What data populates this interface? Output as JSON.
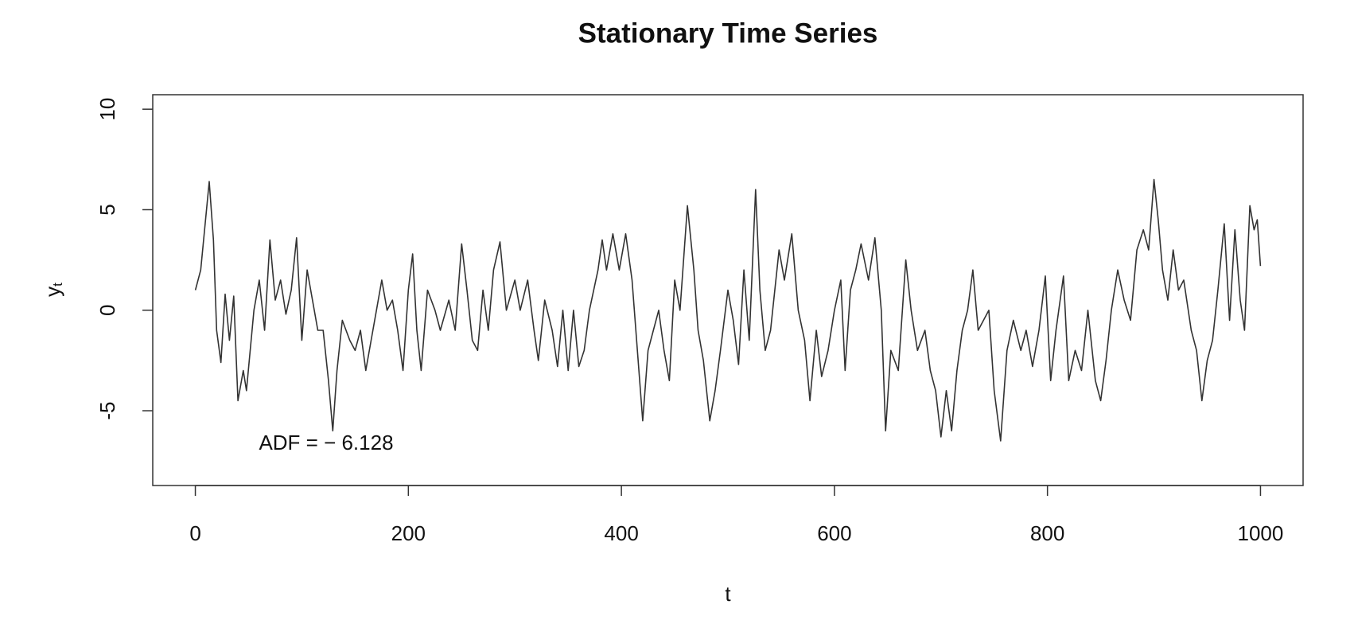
{
  "chart_data": {
    "type": "line",
    "title": "Stationary Time Series",
    "xlabel": "t",
    "ylabel": "y",
    "ylabel_subscript": "t",
    "annotation": "ADF = − 6.128",
    "color": "#333333",
    "xlim": [
      -40,
      1040
    ],
    "ylim": [
      -8.72,
      10.72
    ],
    "xticks": [
      0,
      200,
      400,
      600,
      800,
      1000
    ],
    "yticks": [
      -5,
      0,
      5,
      10
    ],
    "x": [
      0,
      5,
      13,
      17,
      20,
      24,
      28,
      32,
      36,
      40,
      45,
      48,
      55,
      60,
      65,
      70,
      75,
      80,
      85,
      90,
      95,
      100,
      105,
      110,
      115,
      120,
      125,
      129,
      133,
      138,
      145,
      150,
      155,
      160,
      165,
      170,
      175,
      180,
      185,
      190,
      195,
      200,
      204,
      208,
      212,
      218,
      225,
      230,
      238,
      244,
      250,
      255,
      260,
      265,
      270,
      275,
      280,
      286,
      292,
      300,
      305,
      312,
      318,
      322,
      328,
      335,
      340,
      345,
      350,
      355,
      360,
      365,
      370,
      378,
      382,
      386,
      392,
      398,
      404,
      410,
      415,
      420,
      425,
      430,
      435,
      440,
      445,
      450,
      455,
      462,
      468,
      472,
      477,
      483,
      488,
      493,
      500,
      505,
      510,
      515,
      520,
      526,
      530,
      535,
      540,
      548,
      553,
      560,
      566,
      572,
      577,
      583,
      588,
      594,
      600,
      606,
      610,
      615,
      620,
      625,
      632,
      638,
      644,
      648,
      653,
      660,
      667,
      672,
      678,
      685,
      690,
      695,
      700,
      705,
      710,
      715,
      720,
      725,
      730,
      735,
      740,
      745,
      750,
      756,
      762,
      768,
      775,
      780,
      786,
      792,
      798,
      803,
      808,
      815,
      820,
      826,
      832,
      838,
      845,
      850,
      855,
      860,
      866,
      872,
      878,
      884,
      890,
      895,
      900,
      904,
      908,
      913,
      918,
      923,
      928,
      935,
      940,
      945,
      950,
      955,
      960,
      966,
      971,
      976,
      981,
      985,
      990,
      994,
      997,
      1000
    ],
    "values": [
      1,
      2,
      6.4,
      3.5,
      -1,
      -2.6,
      0.8,
      -1.5,
      0.7,
      -4.5,
      -3,
      -4,
      0,
      1.5,
      -1,
      3.5,
      0.5,
      1.5,
      -0.2,
      1,
      3.6,
      -1.5,
      2,
      0.5,
      -1,
      -1,
      -3.5,
      -6,
      -3,
      -0.5,
      -1.5,
      -2,
      -1,
      -3,
      -1.5,
      0,
      1.5,
      0,
      0.5,
      -1,
      -3,
      1,
      2.8,
      -1,
      -3,
      1,
      0,
      -1,
      0.5,
      -1,
      3.3,
      1,
      -1.5,
      -2,
      1,
      -1,
      2,
      3.4,
      0,
      1.5,
      0,
      1.5,
      -1,
      -2.5,
      0.5,
      -1,
      -2.8,
      0,
      -3,
      0,
      -2.8,
      -2,
      0,
      2,
      3.5,
      2,
      3.8,
      2,
      3.8,
      1.5,
      -2,
      -5.5,
      -2,
      -1,
      0,
      -2,
      -3.5,
      1.5,
      0,
      5.2,
      2,
      -1,
      -2.5,
      -5.5,
      -4,
      -2,
      1,
      -0.5,
      -2.7,
      2,
      -1.5,
      6,
      1,
      -2,
      -1,
      3,
      1.5,
      3.8,
      0,
      -1.5,
      -4.5,
      -1,
      -3.3,
      -2,
      0,
      1.5,
      -3,
      1,
      2,
      3.3,
      1.5,
      3.6,
      0,
      -6,
      -2,
      -3,
      2.5,
      0,
      -2,
      -1,
      -3,
      -4,
      -6.3,
      -4,
      -6,
      -3,
      -1,
      0,
      2,
      -1,
      -0.5,
      0,
      -4,
      -6.5,
      -2,
      -0.5,
      -2,
      -1,
      -2.8,
      -1,
      1.7,
      -3.5,
      -1,
      1.7,
      -3.5,
      -2,
      -3,
      0,
      -3.5,
      -4.5,
      -2.5,
      0,
      2,
      0.5,
      -0.5,
      3,
      4,
      3,
      6.5,
      4.5,
      2,
      0.5,
      3,
      1,
      1.5,
      -1,
      -2,
      -4.5,
      -2.5,
      -1.5,
      1,
      4.3,
      -0.5,
      4,
      0.5,
      -1,
      5.2,
      4,
      4.5,
      2.2
    ]
  }
}
